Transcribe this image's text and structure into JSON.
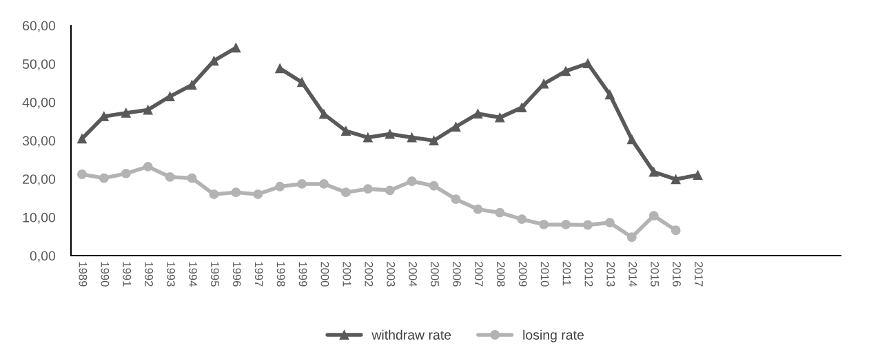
{
  "chart_data": {
    "type": "line",
    "categories": [
      "1989",
      "1990",
      "1991",
      "1992",
      "1993",
      "1994",
      "1995",
      "1996",
      "1997",
      "1998",
      "1999",
      "2000",
      "2001",
      "2002",
      "2003",
      "2004",
      "2005",
      "2006",
      "2007",
      "2008",
      "2009",
      "2010",
      "2011",
      "2012",
      "2013",
      "2014",
      "2015",
      "2016",
      "2017",
      null,
      null,
      null,
      null,
      null,
      null
    ],
    "series": [
      {
        "name": "withdraw rate",
        "color": "#595959",
        "marker": "triangle",
        "values": [
          30.5,
          36.3,
          37.2,
          38.0,
          41.5,
          44.5,
          50.8,
          54.2,
          null,
          48.8,
          45.2,
          36.9,
          32.5,
          30.8,
          31.7,
          30.8,
          30.0,
          33.6,
          37.0,
          36.0,
          38.6,
          44.8,
          48.1,
          50.1,
          42.0,
          30.3,
          21.8,
          19.9,
          21.0,
          null,
          null,
          null,
          null,
          null,
          null
        ]
      },
      {
        "name": "losing rate",
        "color": "#b3b3b3",
        "marker": "circle",
        "values": [
          21.2,
          20.2,
          21.4,
          23.2,
          20.5,
          20.2,
          16.0,
          16.5,
          16.0,
          18.0,
          18.7,
          18.7,
          16.5,
          17.4,
          17.0,
          19.4,
          18.2,
          14.7,
          12.1,
          11.2,
          9.5,
          8.1,
          8.1,
          8.0,
          8.6,
          4.8,
          10.4,
          6.6,
          null,
          null,
          null,
          null,
          null,
          null,
          null
        ]
      }
    ],
    "ylim": [
      0,
      60
    ],
    "yticks": [
      {
        "value": 0,
        "label": "0,00"
      },
      {
        "value": 10,
        "label": "10,00"
      },
      {
        "value": 20,
        "label": "20,00"
      },
      {
        "value": 30,
        "label": "30,00"
      },
      {
        "value": 40,
        "label": "40,00"
      },
      {
        "value": 50,
        "label": "50,00"
      },
      {
        "value": 60,
        "label": "60,00"
      }
    ],
    "grid": false,
    "legend": "bottom",
    "line_style": "solid"
  }
}
